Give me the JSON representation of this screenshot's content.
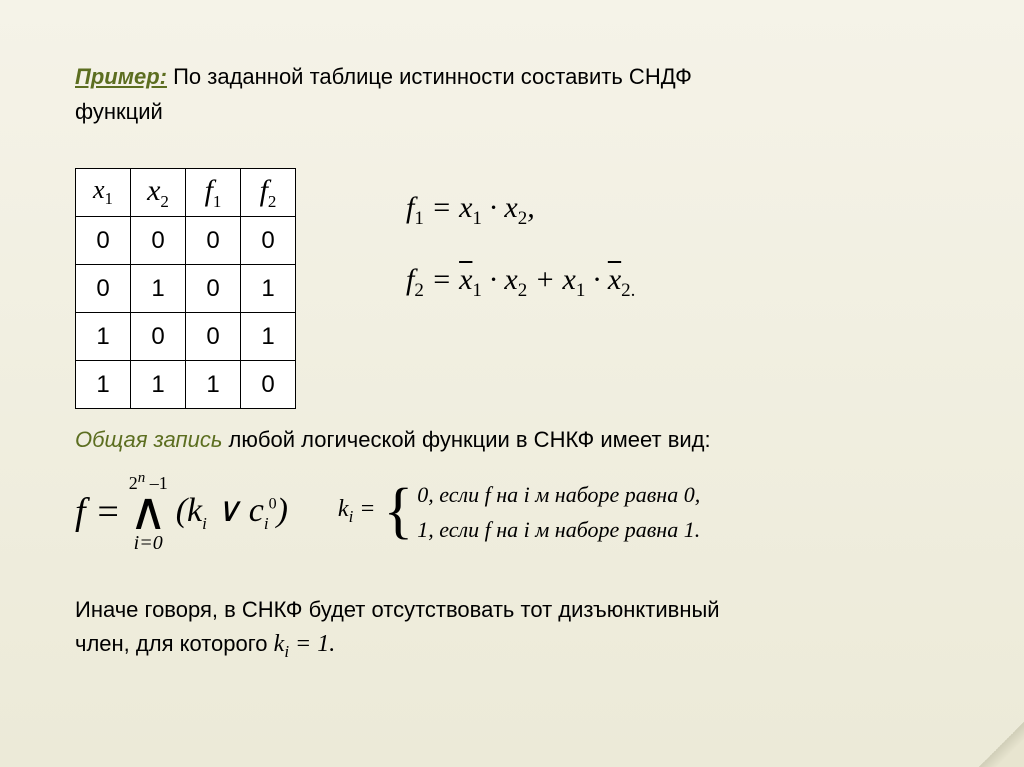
{
  "title": {
    "emphasis": "Пример:",
    "text_line1": " По заданной таблице истинности составить СНДФ",
    "text_line2": "функций"
  },
  "table": {
    "headers": {
      "h1": "x",
      "h1_sub": "1",
      "h2": "x",
      "h2_sub": "2",
      "h3": "f",
      "h3_sub": "1",
      "h4": "f",
      "h4_sub": "2"
    },
    "rows": [
      [
        "0",
        "0",
        "0",
        "0"
      ],
      [
        "0",
        "1",
        "0",
        "1"
      ],
      [
        "1",
        "0",
        "0",
        "1"
      ],
      [
        "1",
        "1",
        "1",
        "0"
      ]
    ]
  },
  "formulas": {
    "f1_lhs": "f",
    "f1_sub": "1",
    "f1_eq": " = ",
    "f1_x1": "x",
    "f1_x1_sub": "1",
    "f1_dot": " · ",
    "f1_x2": "x",
    "f1_x2_sub": "2",
    "f1_comma": ",",
    "f2_lhs": "f",
    "f2_sub": "2",
    "f2_eq": " = ",
    "f2_t1_a": "x",
    "f2_t1_a_sub": "1",
    "f2_t1_dot": " · ",
    "f2_t1_b": "x",
    "f2_t1_b_sub": "2",
    "f2_plus": " + ",
    "f2_t2_a": "x",
    "f2_t2_a_sub": "1",
    "f2_t2_dot": " · ",
    "f2_t2_b": "x",
    "f2_t2_b_sub": "2.",
    "f2_end": ""
  },
  "subtitle": {
    "emphasis": "Общая запись",
    "rest": " любой логической функции в СНКФ имеет вид:"
  },
  "bigformula": {
    "f_eq": "f  = ",
    "upper": "2",
    "upper_sup": "n",
    "upper_rest": " –1",
    "lower": "i=0",
    "lparen": "(",
    "k": "k",
    "k_sub": "i",
    "vee": " ∨ ",
    "c": "c",
    "c_sub": "i",
    "c_sup": "0",
    "rparen": ")"
  },
  "ki": {
    "lhs": "k",
    "lhs_sub": "i",
    "eq": " =",
    "case1": "0, если  f  на i  м наборе  равна 0,",
    "case2": "1, если  f  на i  м наборе  равна 1."
  },
  "bottom": {
    "line1": "Иначе говоря, в СНКФ будет отсутствовать тот дизъюнктивный",
    "line2_a": "член, для которого  ",
    "math_k": "k",
    "math_sub": "i",
    "math_rest": "  = 1."
  }
}
